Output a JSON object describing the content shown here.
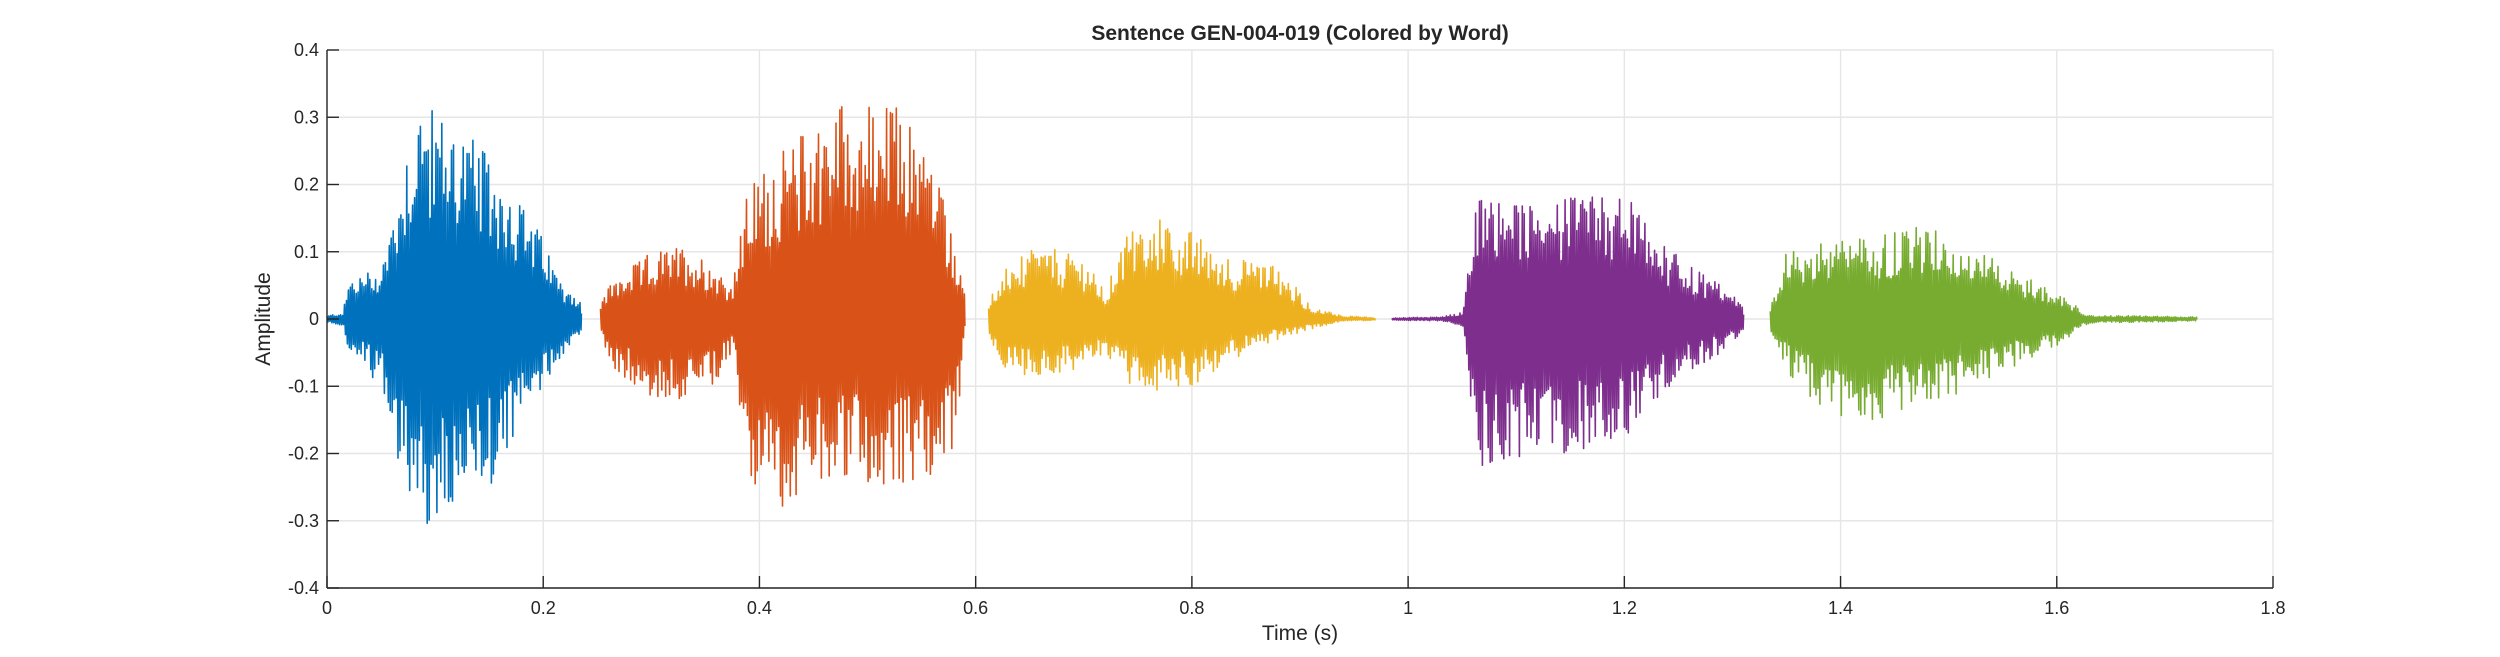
{
  "chart_data": {
    "type": "line",
    "title": "Sentence GEN-004-019 (Colored by Word)",
    "xlabel": "Time (s)",
    "ylabel": "Amplitude",
    "xlim": [
      0,
      1.8
    ],
    "ylim": [
      -0.4,
      0.4
    ],
    "xticks": [
      0,
      0.2,
      0.4,
      0.6,
      0.8,
      1,
      1.2,
      1.4,
      1.6,
      1.8
    ],
    "xtick_labels": [
      "0",
      "0.2",
      "0.4",
      "0.6",
      "0.8",
      "1",
      "1.2",
      "1.4",
      "1.6",
      "1.8"
    ],
    "yticks": [
      -0.4,
      -0.3,
      -0.2,
      -0.1,
      0,
      0.1,
      0.2,
      0.3,
      0.4
    ],
    "ytick_labels": [
      "-0.4",
      "-0.3",
      "-0.2",
      "-0.1",
      "0",
      "0.1",
      "0.2",
      "0.3",
      "0.4"
    ],
    "grid": true,
    "legend": "none",
    "series": [
      {
        "color": "#0072BD",
        "t_range": [
          0.0,
          0.235
        ],
        "envelope_t": [
          0.0,
          0.015,
          0.02,
          0.05,
          0.06,
          0.075,
          0.085,
          0.1,
          0.115,
          0.13,
          0.15,
          0.17,
          0.185,
          0.2,
          0.215,
          0.235
        ],
        "envelope_max": [
          0.005,
          0.01,
          0.06,
          0.08,
          0.15,
          0.27,
          0.33,
          0.31,
          0.3,
          0.28,
          0.24,
          0.2,
          0.16,
          0.12,
          0.06,
          0.03
        ],
        "envelope_min": [
          -0.005,
          -0.01,
          -0.05,
          -0.1,
          -0.18,
          -0.26,
          -0.3,
          -0.33,
          -0.3,
          -0.28,
          -0.25,
          -0.2,
          -0.15,
          -0.1,
          -0.06,
          -0.02
        ]
      },
      {
        "color": "#D95319",
        "t_range": [
          0.253,
          0.59
        ],
        "envelope_t": [
          0.253,
          0.26,
          0.3,
          0.33,
          0.36,
          0.375,
          0.39,
          0.42,
          0.44,
          0.47,
          0.5,
          0.53,
          0.56,
          0.58,
          0.59
        ],
        "envelope_max": [
          0.02,
          0.05,
          0.1,
          0.11,
          0.08,
          0.05,
          0.2,
          0.25,
          0.28,
          0.33,
          0.32,
          0.32,
          0.25,
          0.12,
          0.05
        ],
        "envelope_min": [
          -0.02,
          -0.07,
          -0.12,
          -0.12,
          -0.1,
          -0.05,
          -0.25,
          -0.28,
          -0.26,
          -0.24,
          -0.25,
          -0.25,
          -0.24,
          -0.2,
          -0.04
        ]
      },
      {
        "color": "#EDB120",
        "t_range": [
          0.612,
          0.97
        ],
        "envelope_t": [
          0.612,
          0.63,
          0.66,
          0.7,
          0.72,
          0.74,
          0.77,
          0.8,
          0.84,
          0.88,
          0.91,
          0.94,
          0.97
        ],
        "envelope_max": [
          0.03,
          0.08,
          0.11,
          0.09,
          0.04,
          0.13,
          0.15,
          0.13,
          0.09,
          0.08,
          0.02,
          0.005,
          0.002
        ],
        "envelope_min": [
          -0.03,
          -0.08,
          -0.09,
          -0.07,
          -0.05,
          -0.1,
          -0.11,
          -0.1,
          -0.06,
          -0.03,
          -0.015,
          -0.003,
          -0.002
        ]
      },
      {
        "color": "#7E2F8E",
        "t_range": [
          0.985,
          1.31
        ],
        "envelope_t": [
          0.985,
          1.03,
          1.05,
          1.065,
          1.1,
          1.15,
          1.2,
          1.23,
          1.26,
          1.29,
          1.31
        ],
        "envelope_max": [
          0.002,
          0.003,
          0.01,
          0.2,
          0.17,
          0.18,
          0.19,
          0.12,
          0.08,
          0.05,
          0.02
        ],
        "envelope_min": [
          -0.002,
          -0.003,
          -0.01,
          -0.22,
          -0.21,
          -0.2,
          -0.18,
          -0.12,
          -0.08,
          -0.05,
          -0.02
        ]
      },
      {
        "color": "#77AC30",
        "t_range": [
          1.335,
          1.73
        ],
        "envelope_t": [
          1.335,
          1.35,
          1.38,
          1.42,
          1.46,
          1.5,
          1.55,
          1.6,
          1.63,
          1.67,
          1.73
        ],
        "envelope_max": [
          0.02,
          0.1,
          0.12,
          0.12,
          0.14,
          0.13,
          0.08,
          0.04,
          0.005,
          0.005,
          0.003
        ],
        "envelope_min": [
          -0.02,
          -0.08,
          -0.13,
          -0.16,
          -0.14,
          -0.12,
          -0.08,
          -0.04,
          -0.006,
          -0.005,
          -0.003
        ]
      }
    ]
  }
}
